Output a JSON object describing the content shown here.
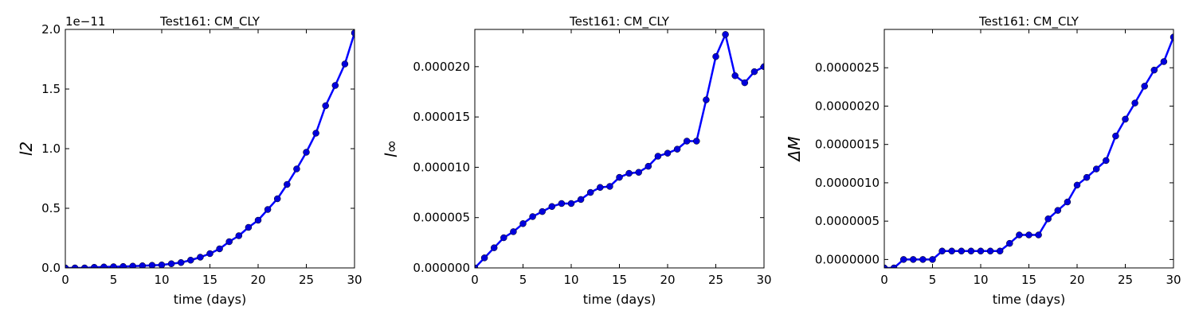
{
  "figure": {
    "line_color": "#0000ff",
    "marker_color": "#0000dd"
  },
  "chart_data": [
    {
      "type": "line",
      "title": "Test161: CM_CLY",
      "xlabel": "time (days)",
      "ylabel": "l2",
      "y_offset_label": "1e−11",
      "xlim": [
        0,
        30
      ],
      "ylim": [
        0,
        2.0
      ],
      "xticks": [
        0,
        5,
        10,
        15,
        20,
        25,
        30
      ],
      "xtick_labels": [
        "0",
        "5",
        "10",
        "15",
        "20",
        "25",
        "30"
      ],
      "yticks": [
        0,
        0.5,
        1.0,
        1.5,
        2.0
      ],
      "ytick_labels": [
        "0.0",
        "0.5",
        "1.0",
        "1.5",
        "2.0"
      ],
      "series": [
        {
          "x": [
            0,
            1,
            2,
            3,
            4,
            5,
            6,
            7,
            8,
            9,
            10,
            11,
            12,
            13,
            14,
            15,
            16,
            17,
            18,
            19,
            20,
            21,
            22,
            23,
            24,
            25,
            26,
            27,
            28,
            29,
            30
          ],
          "values": [
            0.0,
            0.0,
            0.0,
            0.005,
            0.008,
            0.01,
            0.012,
            0.015,
            0.018,
            0.022,
            0.025,
            0.035,
            0.045,
            0.065,
            0.09,
            0.12,
            0.16,
            0.22,
            0.27,
            0.34,
            0.4,
            0.49,
            0.58,
            0.7,
            0.83,
            0.97,
            1.13,
            1.36,
            1.53,
            1.71,
            1.97
          ]
        }
      ]
    },
    {
      "type": "line",
      "title": "Test161: CM_CLY",
      "xlabel": "time (days)",
      "ylabel": "l∞",
      "xlim": [
        0,
        30
      ],
      "ylim": [
        0,
        2.37e-05
      ],
      "xticks": [
        0,
        5,
        10,
        15,
        20,
        25,
        30
      ],
      "xtick_labels": [
        "0",
        "5",
        "10",
        "15",
        "20",
        "25",
        "30"
      ],
      "yticks": [
        0,
        5e-06,
        1e-05,
        1.5e-05,
        2e-05
      ],
      "ytick_labels": [
        "0.000000",
        "0.000005",
        "0.000010",
        "0.000015",
        "0.000020"
      ],
      "series": [
        {
          "x": [
            0,
            1,
            2,
            3,
            4,
            5,
            6,
            7,
            8,
            9,
            10,
            11,
            12,
            13,
            14,
            15,
            16,
            17,
            18,
            19,
            20,
            21,
            22,
            23,
            24,
            25,
            26,
            27,
            28,
            29,
            30
          ],
          "values": [
            0.0,
            1e-06,
            2e-06,
            3e-06,
            3.6e-06,
            4.4e-06,
            5.1e-06,
            5.6e-06,
            6.1e-06,
            6.4e-06,
            6.4e-06,
            6.8e-06,
            7.5e-06,
            8e-06,
            8.1e-06,
            9e-06,
            9.4e-06,
            9.5e-06,
            1.01e-05,
            1.11e-05,
            1.14e-05,
            1.18e-05,
            1.26e-05,
            1.26e-05,
            1.67e-05,
            2.1e-05,
            2.32e-05,
            1.91e-05,
            1.84e-05,
            1.95e-05,
            2e-05
          ]
        }
      ]
    },
    {
      "type": "line",
      "title": "Test161: CM_CLY",
      "xlabel": "time (days)",
      "ylabel": "ΔM",
      "xlim": [
        0,
        30
      ],
      "ylim": [
        -1.1e-07,
        3e-06
      ],
      "xticks": [
        0,
        5,
        10,
        15,
        20,
        25,
        30
      ],
      "xtick_labels": [
        "0",
        "5",
        "10",
        "15",
        "20",
        "25",
        "30"
      ],
      "yticks": [
        0,
        5e-07,
        1e-06,
        1.5e-06,
        2e-06,
        2.5e-06
      ],
      "ytick_labels": [
        "0.0000000",
        "0.0000005",
        "0.0000010",
        "0.0000015",
        "0.0000020",
        "0.0000025"
      ],
      "series": [
        {
          "x": [
            0,
            1,
            2,
            3,
            4,
            5,
            6,
            7,
            8,
            9,
            10,
            11,
            12,
            13,
            14,
            15,
            16,
            17,
            18,
            19,
            20,
            21,
            22,
            23,
            24,
            25,
            26,
            27,
            28,
            29,
            30
          ],
          "values": [
            -1.1e-07,
            -1.1e-07,
            0.0,
            0.0,
            0.0,
            0.0,
            1.1e-07,
            1.1e-07,
            1.1e-07,
            1.1e-07,
            1.1e-07,
            1.1e-07,
            1.1e-07,
            2.1e-07,
            3.2e-07,
            3.2e-07,
            3.2e-07,
            5.3e-07,
            6.4e-07,
            7.5e-07,
            9.7e-07,
            1.07e-06,
            1.18e-06,
            1.29e-06,
            1.61e-06,
            1.83e-06,
            2.04e-06,
            2.26e-06,
            2.47e-06,
            2.58e-06,
            2.9e-06
          ]
        }
      ]
    }
  ]
}
